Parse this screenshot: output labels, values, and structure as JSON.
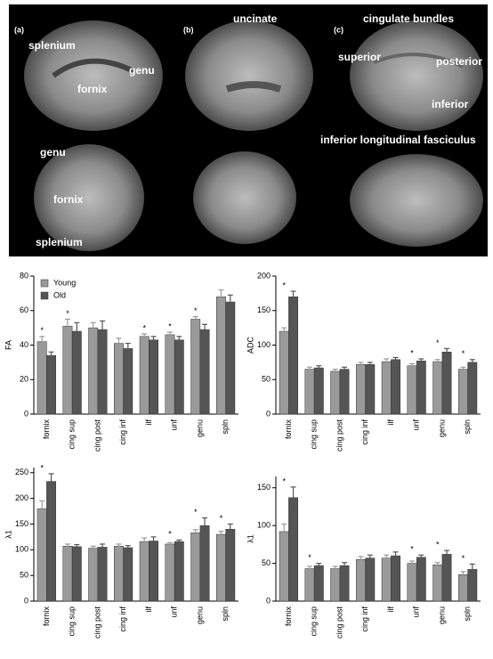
{
  "figure": {
    "panel_labels": [
      "(a)",
      "(b)",
      "(c)"
    ],
    "labels": [
      "splenium",
      "genu",
      "fornix",
      "genu",
      "fornix",
      "splenium",
      "uncinate",
      "cingulate bundles",
      "superior",
      "posterior",
      "inferior",
      "inferior longitudinal fasciculus"
    ]
  },
  "chart_data": [
    {
      "type": "bar",
      "ylabel": "FA",
      "categories": [
        "fornix",
        "cing sup",
        "cing post",
        "cing inf",
        "ilf",
        "unf",
        "genu",
        "spln"
      ],
      "series": [
        {
          "name": "Young",
          "color": "#9a9a9a",
          "values": [
            42,
            51,
            50,
            41,
            45,
            46,
            55,
            68
          ],
          "errors": [
            3,
            4,
            3,
            3,
            1.5,
            1.5,
            1.5,
            4
          ]
        },
        {
          "name": "Old",
          "color": "#555555",
          "values": [
            34,
            48,
            49,
            38,
            43,
            43,
            49,
            65
          ],
          "errors": [
            2,
            5,
            5,
            3,
            2,
            2,
            3,
            4
          ]
        }
      ],
      "markers": [
        "*",
        "*",
        null,
        null,
        "*",
        "*",
        "*",
        null
      ],
      "ylim": [
        0,
        80
      ],
      "yticks": [
        0,
        20,
        40,
        60,
        80
      ],
      "legend": "upper left"
    },
    {
      "type": "bar",
      "ylabel": "ADC",
      "categories": [
        "fornix",
        "cing sup",
        "cing post",
        "cing inf",
        "ilf",
        "unf",
        "genu",
        "spln"
      ],
      "series": [
        {
          "color": "#9a9a9a",
          "values": [
            120,
            65,
            62,
            72,
            76,
            70,
            76,
            65
          ],
          "errors": [
            5,
            3,
            3,
            3,
            4,
            3,
            3,
            3
          ]
        },
        {
          "color": "#555555",
          "values": [
            170,
            67,
            65,
            72,
            79,
            77,
            90,
            75
          ],
          "errors": [
            8,
            3,
            3,
            3,
            3,
            3,
            5,
            4
          ]
        }
      ],
      "markers": [
        "*",
        null,
        null,
        null,
        null,
        "*",
        "*",
        "*"
      ],
      "ylim": [
        0,
        200
      ],
      "yticks": [
        0,
        50,
        100,
        150,
        200
      ]
    },
    {
      "type": "bar",
      "ylabel": "λ1",
      "categories": [
        "fornix",
        "cing sup",
        "cing post",
        "cing inf",
        "ilf",
        "unf",
        "genu",
        "spln"
      ],
      "series": [
        {
          "color": "#9a9a9a",
          "values": [
            180,
            107,
            103,
            107,
            116,
            111,
            133,
            130
          ],
          "errors": [
            15,
            4,
            4,
            4,
            7,
            3,
            6,
            6
          ]
        },
        {
          "color": "#555555",
          "values": [
            233,
            106,
            105,
            104,
            117,
            116,
            147,
            140
          ],
          "errors": [
            15,
            4,
            6,
            4,
            8,
            3,
            15,
            10
          ]
        }
      ],
      "markers": [
        "*",
        null,
        null,
        null,
        null,
        "*",
        "*",
        "*"
      ],
      "ylim": [
        0,
        260
      ],
      "yticks": [
        0,
        50,
        100,
        150,
        200,
        250
      ]
    },
    {
      "type": "bar",
      "ylabel": "λ1",
      "categories": [
        "fornix",
        "cing sup",
        "cing post",
        "cing inf",
        "ilf",
        "unf",
        "genu",
        "spln"
      ],
      "series": [
        {
          "color": "#9a9a9a",
          "values": [
            92,
            43,
            43,
            55,
            57,
            50,
            48,
            35
          ],
          "errors": [
            10,
            3,
            3,
            4,
            4,
            3,
            3,
            4
          ]
        },
        {
          "color": "#555555",
          "values": [
            137,
            47,
            47,
            57,
            60,
            58,
            62,
            42
          ],
          "errors": [
            14,
            3,
            4,
            4,
            5,
            3,
            5,
            7
          ]
        }
      ],
      "markers": [
        "*",
        "*",
        null,
        null,
        null,
        "*",
        "*",
        "*"
      ],
      "ylim": [
        0,
        165
      ],
      "yticks": [
        0,
        50,
        100,
        150
      ]
    }
  ]
}
